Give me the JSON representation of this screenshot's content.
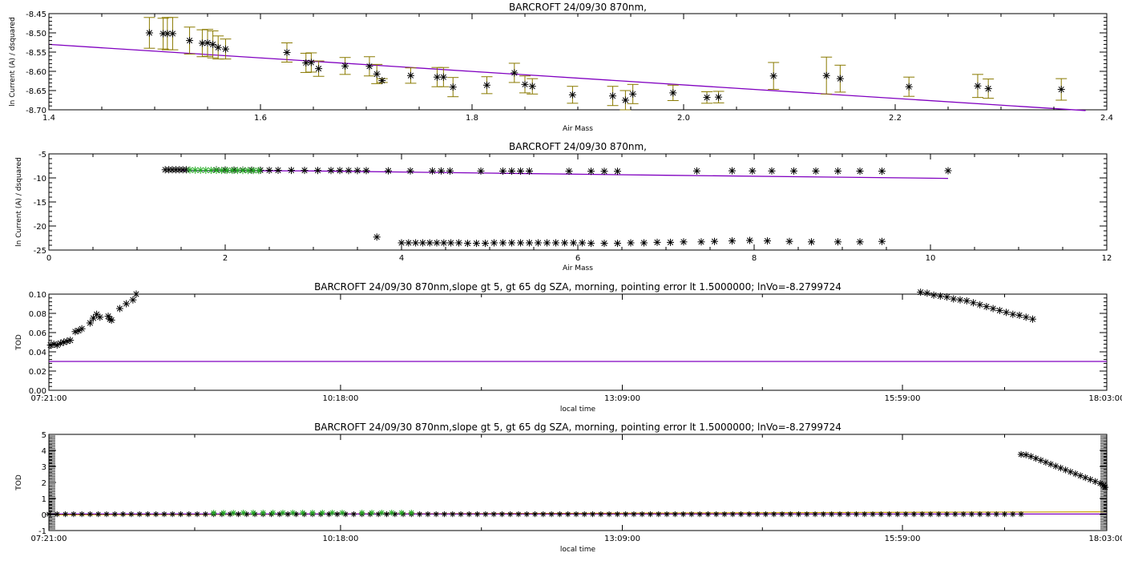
{
  "chart_data": [
    {
      "id": "p1",
      "type": "scatter",
      "title": "BARCROFT 24/09/30 870nm,",
      "xlabel": "Air Mass",
      "ylabel": "ln Current (A) / dsquared",
      "xlim": [
        1.4,
        2.4
      ],
      "ylim": [
        -8.7,
        -8.45
      ],
      "xticks": [
        1.4,
        1.6,
        1.8,
        2.0,
        2.2,
        2.4
      ],
      "xticklabels": [
        "1.4",
        "1.6",
        "1.8",
        "2.0",
        "2.2",
        "2.4"
      ],
      "yticks": [
        -8.7,
        -8.65,
        -8.6,
        -8.55,
        -8.5,
        -8.45
      ],
      "yticklabels": [
        "-8.70",
        "-8.65",
        "-8.60",
        "-8.55",
        "-8.50",
        "-8.45"
      ],
      "colors": {
        "points": "#000000",
        "errorbars": "#8a7a00",
        "fit": "#8000c0"
      },
      "fit_line": [
        [
          1.4,
          -8.53
        ],
        [
          2.38,
          -8.702
        ]
      ],
      "points": [
        [
          1.495,
          -8.5,
          0.04
        ],
        [
          1.508,
          -8.502,
          0.04
        ],
        [
          1.512,
          -8.502,
          0.042
        ],
        [
          1.517,
          -8.502,
          0.042
        ],
        [
          1.533,
          -8.52,
          0.035
        ],
        [
          1.545,
          -8.527,
          0.035
        ],
        [
          1.55,
          -8.526,
          0.035
        ],
        [
          1.555,
          -8.53,
          0.035
        ],
        [
          1.56,
          -8.538,
          0.03
        ],
        [
          1.567,
          -8.542,
          0.026
        ],
        [
          1.625,
          -8.551,
          0.025
        ],
        [
          1.643,
          -8.578,
          0.025
        ],
        [
          1.648,
          -8.577,
          0.025
        ],
        [
          1.655,
          -8.593,
          0.02
        ],
        [
          1.68,
          -8.586,
          0.022
        ],
        [
          1.703,
          -8.587,
          0.025
        ],
        [
          1.71,
          -8.607,
          0.025
        ],
        [
          1.715,
          -8.624,
          0.005
        ],
        [
          1.742,
          -8.611,
          0.02
        ],
        [
          1.767,
          -8.615,
          0.025
        ],
        [
          1.773,
          -8.615,
          0.025
        ],
        [
          1.782,
          -8.641,
          0.025
        ],
        [
          1.814,
          -8.636,
          0.022
        ],
        [
          1.84,
          -8.604,
          0.025
        ],
        [
          1.85,
          -8.634,
          0.022
        ],
        [
          1.857,
          -8.639,
          0.02
        ],
        [
          1.895,
          -8.661,
          0.022
        ],
        [
          1.933,
          -8.664,
          0.025
        ],
        [
          1.945,
          -8.675,
          0.025
        ],
        [
          1.952,
          -8.659,
          0.025
        ],
        [
          1.99,
          -8.656,
          0.02
        ],
        [
          2.022,
          -8.668,
          0.015
        ],
        [
          2.033,
          -8.667,
          0.015
        ],
        [
          2.085,
          -8.612,
          0.035
        ],
        [
          2.135,
          -8.611,
          0.048
        ],
        [
          2.148,
          -8.619,
          0.035
        ],
        [
          2.213,
          -8.64,
          0.025
        ],
        [
          2.278,
          -8.638,
          0.03
        ],
        [
          2.288,
          -8.645,
          0.025
        ],
        [
          2.357,
          -8.647,
          0.028
        ]
      ]
    },
    {
      "id": "p2",
      "type": "scatter",
      "title": "BARCROFT 24/09/30 870nm,",
      "xlabel": "Air Mass",
      "ylabel": "ln Current (A) / dsquared",
      "xlim": [
        0,
        12
      ],
      "ylim": [
        -25,
        -5
      ],
      "xticks": [
        0,
        2,
        4,
        6,
        8,
        10,
        12
      ],
      "xticklabels": [
        "0",
        "2",
        "4",
        "6",
        "8",
        "10",
        "12"
      ],
      "yticks": [
        -25,
        -20,
        -15,
        -10,
        -5
      ],
      "yticklabels": [
        "-25",
        "-20",
        "-15",
        "-10",
        "-5"
      ],
      "colors": {
        "points": "#000000",
        "green": "#22aa22",
        "fit": "#8000c0"
      },
      "fit_line": [
        [
          1.5,
          -8.45
        ],
        [
          3.0,
          -8.55
        ],
        [
          5.0,
          -9.0
        ],
        [
          7.0,
          -9.45
        ],
        [
          9.0,
          -9.85
        ],
        [
          10.2,
          -10.1
        ]
      ],
      "upper_points": [
        [
          1.32,
          -8.3
        ],
        [
          1.36,
          -8.3
        ],
        [
          1.4,
          -8.3
        ],
        [
          1.44,
          -8.3
        ],
        [
          1.48,
          -8.3
        ],
        [
          1.52,
          -8.3
        ],
        [
          1.56,
          -8.3
        ],
        [
          1.9,
          -8.32
        ],
        [
          2.0,
          -8.34
        ],
        [
          2.1,
          -8.35
        ],
        [
          2.2,
          -8.36
        ],
        [
          2.3,
          -8.38
        ],
        [
          2.4,
          -8.4
        ],
        [
          2.5,
          -8.41
        ],
        [
          2.6,
          -8.42
        ],
        [
          2.75,
          -8.43
        ],
        [
          2.9,
          -8.44
        ],
        [
          3.05,
          -8.45
        ],
        [
          3.2,
          -8.46
        ],
        [
          3.3,
          -8.46
        ],
        [
          3.4,
          -8.47
        ],
        [
          3.5,
          -8.47
        ],
        [
          3.6,
          -8.48
        ],
        [
          3.85,
          -8.52
        ],
        [
          4.1,
          -8.54
        ],
        [
          4.35,
          -8.55
        ],
        [
          4.45,
          -8.55
        ],
        [
          4.55,
          -8.56
        ],
        [
          4.9,
          -8.57
        ],
        [
          5.15,
          -8.58
        ],
        [
          5.25,
          -8.58
        ],
        [
          5.35,
          -8.58
        ],
        [
          5.45,
          -8.58
        ],
        [
          5.9,
          -8.6
        ],
        [
          6.15,
          -8.62
        ],
        [
          6.3,
          -8.62
        ],
        [
          6.45,
          -8.63
        ],
        [
          7.35,
          -8.55
        ],
        [
          7.75,
          -8.52
        ],
        [
          7.98,
          -8.54
        ],
        [
          8.2,
          -8.55
        ],
        [
          8.45,
          -8.56
        ],
        [
          8.7,
          -8.56
        ],
        [
          8.95,
          -8.57
        ],
        [
          9.2,
          -8.58
        ],
        [
          9.45,
          -8.6
        ],
        [
          10.2,
          -8.5
        ]
      ],
      "green_points": [
        [
          1.6,
          -8.35
        ],
        [
          1.66,
          -8.38
        ],
        [
          1.72,
          -8.4
        ],
        [
          1.78,
          -8.4
        ],
        [
          1.84,
          -8.42
        ],
        [
          1.9,
          -8.42
        ],
        [
          1.96,
          -8.44
        ],
        [
          2.02,
          -8.44
        ],
        [
          2.08,
          -8.44
        ],
        [
          2.14,
          -8.45
        ],
        [
          2.2,
          -8.45
        ],
        [
          2.26,
          -8.46
        ],
        [
          2.32,
          -8.46
        ],
        [
          2.38,
          -8.47
        ]
      ],
      "lower_points": [
        [
          3.72,
          -22.3
        ],
        [
          4.0,
          -23.5
        ],
        [
          4.08,
          -23.5
        ],
        [
          4.16,
          -23.5
        ],
        [
          4.24,
          -23.5
        ],
        [
          4.32,
          -23.5
        ],
        [
          4.4,
          -23.5
        ],
        [
          4.48,
          -23.5
        ],
        [
          4.56,
          -23.5
        ],
        [
          4.65,
          -23.5
        ],
        [
          4.75,
          -23.6
        ],
        [
          4.85,
          -23.6
        ],
        [
          4.95,
          -23.6
        ],
        [
          5.05,
          -23.5
        ],
        [
          5.15,
          -23.5
        ],
        [
          5.25,
          -23.5
        ],
        [
          5.35,
          -23.5
        ],
        [
          5.45,
          -23.5
        ],
        [
          5.55,
          -23.5
        ],
        [
          5.65,
          -23.5
        ],
        [
          5.75,
          -23.5
        ],
        [
          5.85,
          -23.5
        ],
        [
          5.95,
          -23.5
        ],
        [
          6.05,
          -23.5
        ],
        [
          6.15,
          -23.6
        ],
        [
          6.3,
          -23.6
        ],
        [
          6.45,
          -23.6
        ],
        [
          6.6,
          -23.5
        ],
        [
          6.75,
          -23.5
        ],
        [
          6.9,
          -23.4
        ],
        [
          7.05,
          -23.4
        ],
        [
          7.2,
          -23.3
        ],
        [
          7.4,
          -23.3
        ],
        [
          7.55,
          -23.2
        ],
        [
          7.75,
          -23.1
        ],
        [
          7.95,
          -23.0
        ],
        [
          8.15,
          -23.1
        ],
        [
          8.4,
          -23.2
        ],
        [
          8.65,
          -23.3
        ],
        [
          8.95,
          -23.3
        ],
        [
          9.2,
          -23.3
        ],
        [
          9.45,
          -23.2
        ]
      ]
    },
    {
      "id": "p3",
      "type": "scatter",
      "title": "BARCROFT 24/09/30 870nm,slope gt 5, gt 65 dg SZA, morning, pointing error lt 1.5000000; lnVo=-8.2799724",
      "xlabel": "local time",
      "ylabel": "TOD",
      "xlim": [
        0,
        642
      ],
      "ylim": [
        0,
        0.1
      ],
      "xticks": [
        0,
        177,
        348,
        518,
        642
      ],
      "xticklabels": [
        "07:21:00",
        "10:18:00",
        "13:09:00",
        "15:59:00",
        "18:03:00"
      ],
      "yticks": [
        0.0,
        0.02,
        0.04,
        0.06,
        0.08,
        0.1
      ],
      "yticklabels": [
        "0.00",
        "0.02",
        "0.04",
        "0.06",
        "0.08",
        "0.10"
      ],
      "colors": {
        "points": "#000000",
        "fit": "#8000c0"
      },
      "hline": 0.03,
      "points": [
        [
          1,
          0.047
        ],
        [
          3,
          0.048
        ],
        [
          5,
          0.047
        ],
        [
          7,
          0.049
        ],
        [
          9,
          0.05
        ],
        [
          11,
          0.051
        ],
        [
          13,
          0.052
        ],
        [
          16,
          0.061
        ],
        [
          18,
          0.062
        ],
        [
          20,
          0.064
        ],
        [
          25,
          0.07
        ],
        [
          27,
          0.075
        ],
        [
          29,
          0.079
        ],
        [
          31,
          0.076
        ],
        [
          36,
          0.077
        ],
        [
          37,
          0.074
        ],
        [
          38,
          0.073
        ],
        [
          43,
          0.085
        ],
        [
          47,
          0.09
        ],
        [
          51,
          0.094
        ],
        [
          53,
          0.1
        ],
        [
          529,
          0.102
        ],
        [
          533,
          0.101
        ],
        [
          537,
          0.099
        ],
        [
          541,
          0.098
        ],
        [
          545,
          0.097
        ],
        [
          549,
          0.095
        ],
        [
          553,
          0.094
        ],
        [
          557,
          0.093
        ],
        [
          561,
          0.091
        ],
        [
          565,
          0.089
        ],
        [
          569,
          0.087
        ],
        [
          573,
          0.085
        ],
        [
          577,
          0.083
        ],
        [
          581,
          0.081
        ],
        [
          585,
          0.079
        ],
        [
          589,
          0.078
        ],
        [
          593,
          0.076
        ],
        [
          597,
          0.074
        ]
      ]
    },
    {
      "id": "p4",
      "type": "scatter",
      "title": "BARCROFT 24/09/30 870nm,slope gt 5, gt 65 dg SZA, morning, pointing error lt 1.5000000; lnVo=-8.2799724",
      "xlabel": "local time",
      "ylabel": "TOD",
      "xlim": [
        0,
        642
      ],
      "ylim": [
        -1,
        5
      ],
      "xticks": [
        0,
        177,
        348,
        518,
        642
      ],
      "xticklabels": [
        "07:21:00",
        "10:18:00",
        "13:09:00",
        "15:59:00",
        "18:03:00"
      ],
      "yticks": [
        -1,
        0,
        1,
        2,
        3,
        4,
        5
      ],
      "yticklabels": [
        "-1",
        "0",
        "1",
        "2",
        "3",
        "4",
        "5"
      ],
      "colors": {
        "points": "#000000",
        "green": "#22aa22",
        "fit": "#8000c0",
        "gold": "#c8a000"
      },
      "hline": 0.03,
      "gold_line": [
        [
          0,
          -0.02
        ],
        [
          642,
          0.17
        ]
      ],
      "baseline": {
        "start": 0,
        "end": 590,
        "step": 5,
        "y": 0.02
      },
      "green_points": [
        [
          100,
          0.1
        ],
        [
          106,
          0.1
        ],
        [
          112,
          0.1
        ],
        [
          118,
          0.11
        ],
        [
          124,
          0.11
        ],
        [
          130,
          0.11
        ],
        [
          136,
          0.11
        ],
        [
          142,
          0.11
        ],
        [
          148,
          0.11
        ],
        [
          154,
          0.11
        ],
        [
          160,
          0.11
        ],
        [
          166,
          0.11
        ],
        [
          172,
          0.11
        ],
        [
          178,
          0.11
        ],
        [
          190,
          0.11
        ],
        [
          196,
          0.11
        ],
        [
          202,
          0.11
        ],
        [
          208,
          0.11
        ],
        [
          214,
          0.11
        ],
        [
          220,
          0.11
        ]
      ],
      "decline_points": [
        [
          590,
          3.75
        ],
        [
          593,
          3.72
        ],
        [
          596,
          3.62
        ],
        [
          599,
          3.5
        ],
        [
          602,
          3.38
        ],
        [
          605,
          3.26
        ],
        [
          608,
          3.14
        ],
        [
          611,
          3.02
        ],
        [
          614,
          2.9
        ],
        [
          617,
          2.78
        ],
        [
          620,
          2.66
        ],
        [
          623,
          2.54
        ],
        [
          626,
          2.42
        ],
        [
          629,
          2.3
        ],
        [
          632,
          2.18
        ],
        [
          635,
          2.06
        ],
        [
          638,
          1.94
        ],
        [
          640,
          1.82
        ],
        [
          641,
          1.7
        ]
      ]
    }
  ]
}
